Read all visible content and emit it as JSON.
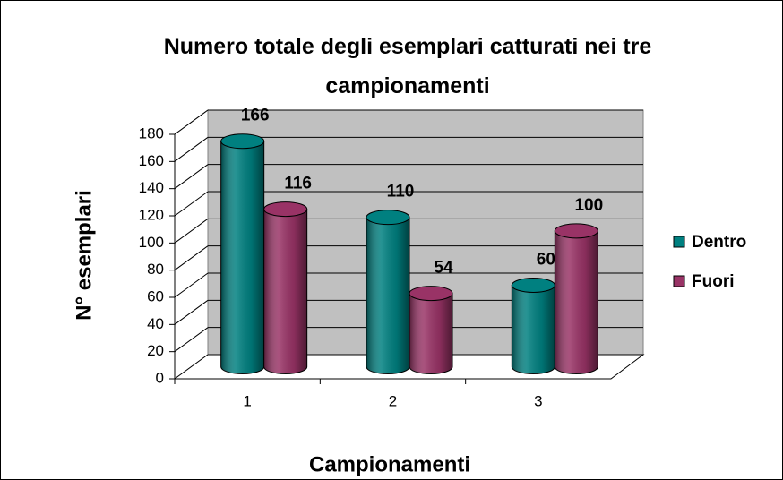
{
  "chart_data": {
    "type": "bar3d",
    "title": "Numero totale degli esemplari catturati nei tre campionamenti",
    "x_label": "Campionamenti",
    "y_label": "N° esemplari",
    "categories": [
      "1",
      "2",
      "3"
    ],
    "series": [
      {
        "name": "Dentro",
        "color": "#008080",
        "values": [
          166,
          110,
          60
        ]
      },
      {
        "name": "Fuori",
        "color": "#993366",
        "values": [
          116,
          54,
          100
        ]
      }
    ],
    "ylim": [
      0,
      180
    ],
    "yticks": [
      0,
      20,
      40,
      60,
      80,
      100,
      120,
      140,
      160,
      180
    ],
    "grid": true,
    "legend": "right"
  }
}
